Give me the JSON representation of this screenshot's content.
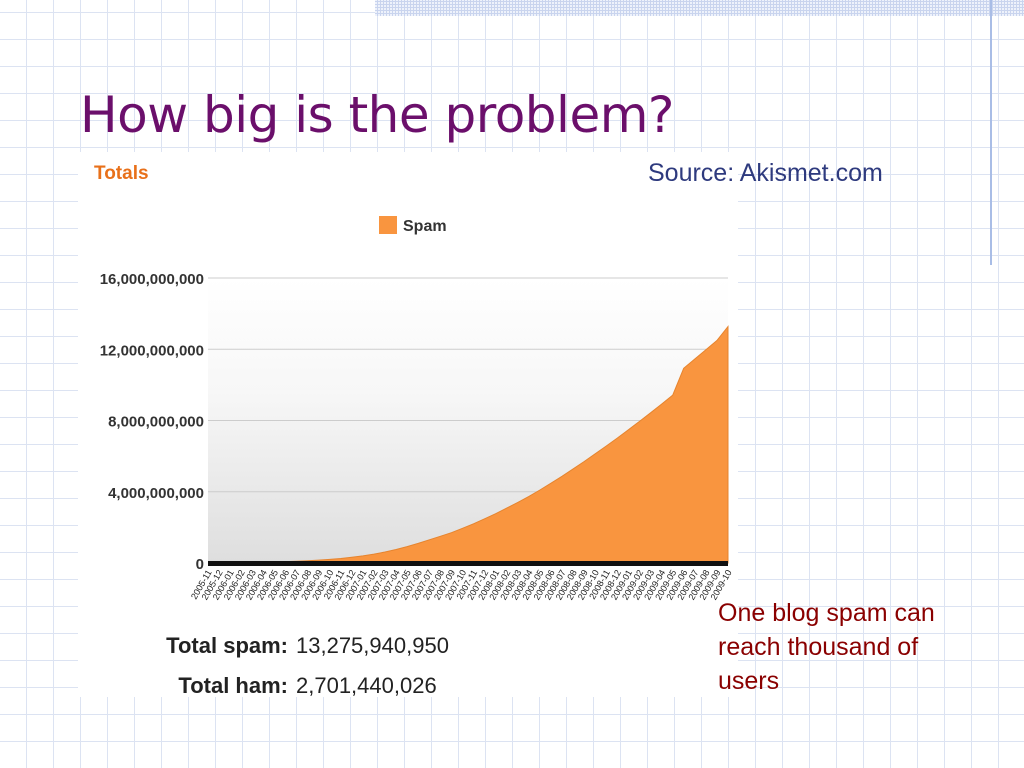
{
  "slide": {
    "title": "How big is the problem?",
    "source": "Source:  Akismet.com",
    "note": "One blog spam can reach thousand of users"
  },
  "stats": {
    "spam_label": "Total spam:",
    "spam_value": "13,275,940,950",
    "ham_label": "Total ham:",
    "ham_value": "2,701,440,026"
  },
  "colors": {
    "title": "#6b0f6b",
    "source": "#2e3a7e",
    "note": "#8a0000",
    "area": "#f9953f",
    "heading": "#e8701a"
  },
  "chart_data": {
    "type": "area",
    "title": "Totals",
    "legend": [
      "Spam"
    ],
    "legend_position": "top",
    "grid": true,
    "ylim": [
      0,
      16000000000
    ],
    "yticks": [
      {
        "value": 0,
        "label": "0"
      },
      {
        "value": 4000000000,
        "label": "4,000,000,000"
      },
      {
        "value": 8000000000,
        "label": "8,000,000,000"
      },
      {
        "value": 12000000000,
        "label": "12,000,000,000"
      },
      {
        "value": 16000000000,
        "label": "16,000,000,000"
      }
    ],
    "x": [
      "2005-11",
      "2005-12",
      "2006-01",
      "2006-02",
      "2006-03",
      "2006-04",
      "2006-05",
      "2006-06",
      "2006-07",
      "2006-08",
      "2006-09",
      "2006-10",
      "2006-11",
      "2006-12",
      "2007-01",
      "2007-02",
      "2007-03",
      "2007-04",
      "2007-05",
      "2007-06",
      "2007-07",
      "2007-08",
      "2007-09",
      "2007-10",
      "2007-11",
      "2007-12",
      "2008-01",
      "2008-02",
      "2008-03",
      "2008-04",
      "2008-05",
      "2008-06",
      "2008-07",
      "2008-08",
      "2008-09",
      "2008-10",
      "2008-11",
      "2008-12",
      "2009-01",
      "2009-02",
      "2009-03",
      "2009-04",
      "2009-05",
      "2009-06",
      "2009-07",
      "2009-08",
      "2009-09",
      "2009-10"
    ],
    "series": [
      {
        "name": "Spam",
        "values": [
          0,
          5000000,
          10000000,
          20000000,
          30000000,
          45000000,
          60000000,
          80000000,
          100000000,
          130000000,
          160000000,
          200000000,
          250000000,
          320000000,
          400000000,
          500000000,
          620000000,
          760000000,
          920000000,
          1100000000,
          1300000000,
          1500000000,
          1700000000,
          1950000000,
          2200000000,
          2480000000,
          2770000000,
          3080000000,
          3400000000,
          3740000000,
          4100000000,
          4480000000,
          4870000000,
          5280000000,
          5700000000,
          6130000000,
          6570000000,
          7020000000,
          7480000000,
          7950000000,
          8430000000,
          8920000000,
          9420000000,
          10930000000,
          11450000000,
          11970000000,
          12490000000,
          13275940950
        ]
      }
    ]
  }
}
